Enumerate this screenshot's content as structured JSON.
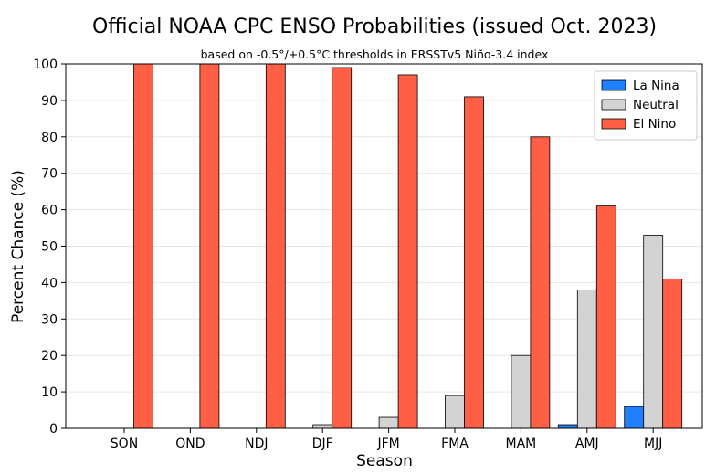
{
  "chart_data": {
    "type": "bar",
    "title": "Official NOAA CPC ENSO Probabilities (issued Oct. 2023)",
    "subtitle": "based on -0.5°/+0.5°C thresholds in ERSSTv5 Niño-3.4 index",
    "xlabel": "Season",
    "ylabel": "Percent Chance (%)",
    "ylim": [
      0,
      100
    ],
    "yticks": [
      0,
      10,
      20,
      30,
      40,
      50,
      60,
      70,
      80,
      90,
      100
    ],
    "grid": true,
    "legend_position": "top-right",
    "categories": [
      "SON",
      "OND",
      "NDJ",
      "DJF",
      "JFM",
      "FMA",
      "MAM",
      "AMJ",
      "MJJ"
    ],
    "series": [
      {
        "name": "La Nina",
        "color": "#1f7fff",
        "values": [
          0,
          0,
          0,
          0,
          0,
          0,
          0,
          1,
          6
        ]
      },
      {
        "name": "Neutral",
        "color": "#d3d3d3",
        "values": [
          0,
          0,
          0,
          1,
          3,
          9,
          20,
          38,
          53
        ]
      },
      {
        "name": "El Nino",
        "color": "#ff5f45",
        "values": [
          100,
          100,
          100,
          99,
          97,
          91,
          80,
          61,
          41
        ]
      }
    ]
  }
}
